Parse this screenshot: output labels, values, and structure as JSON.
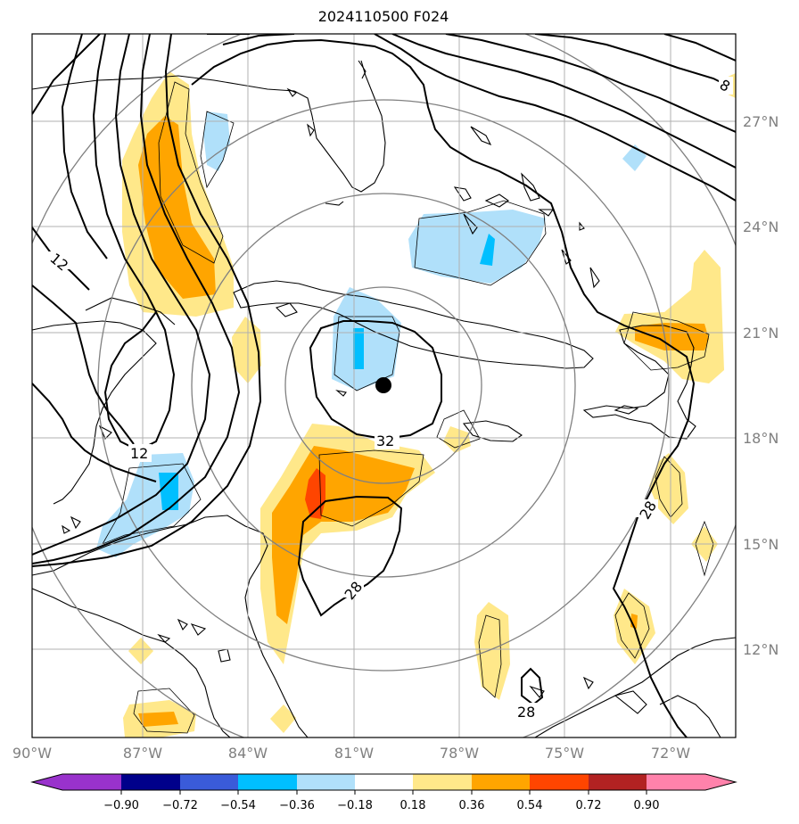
{
  "title": "2024110500 F024",
  "map": {
    "lon_ticks": [
      "90°W",
      "87°W",
      "84°W",
      "81°W",
      "78°W",
      "75°W",
      "72°W"
    ],
    "lat_ticks": [
      "27°N",
      "24°N",
      "21°N",
      "18°N",
      "15°N",
      "12°N"
    ],
    "contour_labels": [
      "12",
      "12",
      "8",
      "32",
      "28",
      "28",
      "28"
    ],
    "storm_center": {
      "lon": -80.3,
      "lat": 19.5
    }
  },
  "colorbar": {
    "ticks": [
      "−0.90",
      "−0.72",
      "−0.54",
      "−0.36",
      "−0.18",
      "0.18",
      "0.36",
      "0.54",
      "0.72",
      "0.90"
    ],
    "colors": [
      "#9932cc",
      "#00008b",
      "#3a5bd9",
      "#00bfff",
      "#b0e0fa",
      "#ffffff",
      "#ffe88a",
      "#ffa500",
      "#ff4500",
      "#b22222",
      "#ff82ab"
    ]
  },
  "colors": {
    "pos_light": "#ffe88a",
    "pos_mid": "#ffa500",
    "pos_strong": "#ff4500",
    "neg_light": "#b0e0fa",
    "neg_mid": "#00bfff",
    "gridline": "#b0b0b0",
    "range_ring": "#808080"
  }
}
